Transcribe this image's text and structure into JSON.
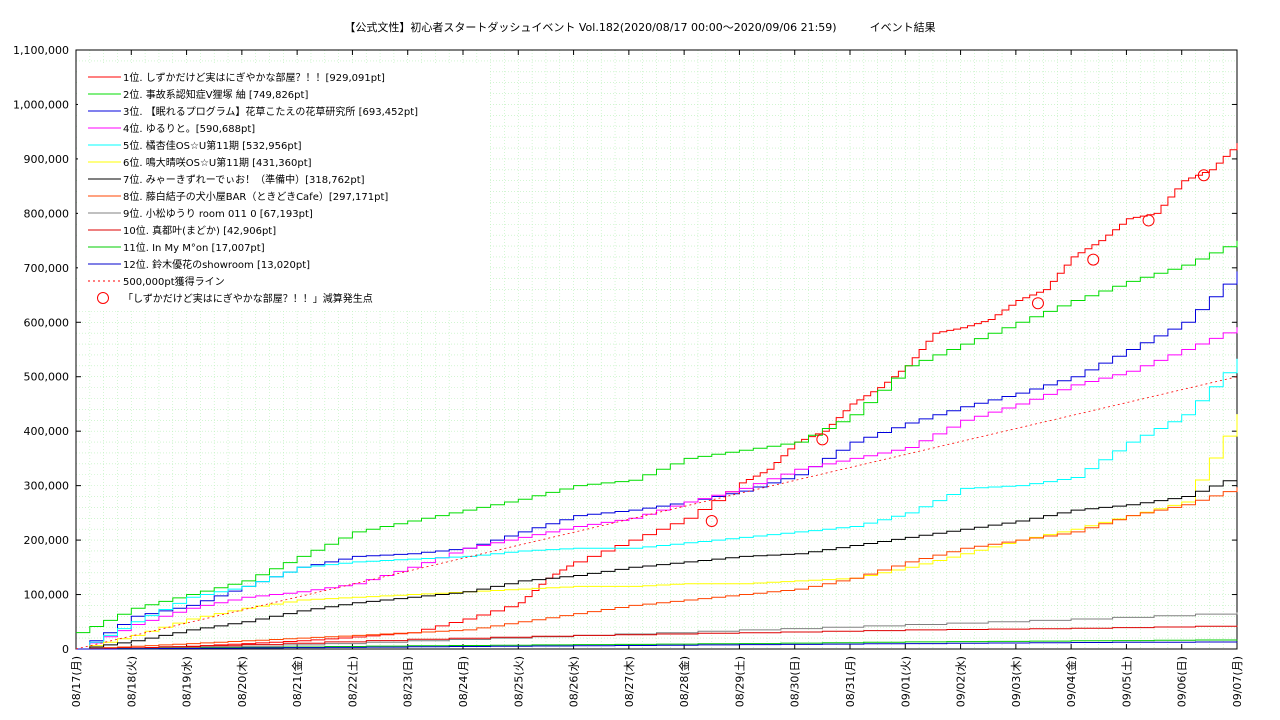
{
  "title": "【公式文性】初心者スタートダッシュイベント Vol.182(2020/08/17 00:00〜2020/09/06 21:59)　　　イベント結果",
  "chart_data": {
    "type": "line",
    "grid": true,
    "legend_position": "top-left",
    "ylim": [
      0,
      1100000
    ],
    "y_ticks": [
      0,
      100000,
      200000,
      300000,
      400000,
      500000,
      600000,
      700000,
      800000,
      900000,
      1000000,
      1100000
    ],
    "y_tick_labels": [
      "0",
      "100,000",
      "200,000",
      "300,000",
      "400,000",
      "500,000",
      "600,000",
      "700,000",
      "800,000",
      "900,000",
      "1,000,000",
      "1,100,000"
    ],
    "xlim": [
      0,
      21
    ],
    "x_tick_labels": [
      "08/17(月)",
      "08/18(火)",
      "08/19(水)",
      "08/20(木)",
      "08/21(金)",
      "08/22(土)",
      "08/23(日)",
      "08/24(月)",
      "08/25(火)",
      "08/26(水)",
      "08/27(木)",
      "08/28(金)",
      "08/29(土)",
      "08/30(日)",
      "08/31(月)",
      "09/01(火)",
      "09/02(水)",
      "09/03(木)",
      "09/04(金)",
      "09/05(土)",
      "09/06(日)",
      "09/07(月)"
    ],
    "series": [
      {
        "name": "1位. しずかだけど実はにぎやかな部屋？！！[929,091pt]",
        "color": "#ff0000",
        "x": [
          0,
          1,
          2,
          3,
          4,
          5,
          6,
          7,
          8,
          8.5,
          9,
          10,
          11,
          12,
          12.5,
          13,
          13.5,
          14,
          14.5,
          15,
          15.5,
          16,
          16.5,
          17,
          17.5,
          18,
          18.5,
          19,
          19.5,
          20,
          20.5,
          21
        ],
        "y": [
          0,
          2000,
          5000,
          10000,
          15000,
          22000,
          30000,
          55000,
          85000,
          130000,
          160000,
          200000,
          240000,
          305000,
          330000,
          380000,
          400000,
          450000,
          480000,
          520000,
          580000,
          590000,
          605000,
          640000,
          660000,
          720000,
          750000,
          790000,
          800000,
          860000,
          880000,
          929091
        ]
      },
      {
        "name": "2位. 事故系認知症V狸塚 紬 [749,826pt]",
        "color": "#00dd00",
        "x": [
          0,
          1,
          2,
          3,
          4,
          5,
          6,
          7,
          8,
          9,
          10,
          11,
          12,
          13,
          14,
          15,
          16,
          17,
          18,
          19,
          20,
          21
        ],
        "y": [
          30000,
          75000,
          100000,
          125000,
          170000,
          215000,
          235000,
          255000,
          275000,
          300000,
          310000,
          350000,
          365000,
          380000,
          430000,
          520000,
          560000,
          600000,
          640000,
          675000,
          705000,
          749826
        ]
      },
      {
        "name": "3位. 【眠れるプログラム】花草こたえの花草研究所 [693,452pt]",
        "color": "#0000dd",
        "x": [
          0,
          1,
          2,
          3,
          4,
          5,
          6,
          7,
          8,
          9,
          10,
          11,
          12,
          13,
          14,
          15,
          16,
          17,
          18,
          19,
          20,
          21
        ],
        "y": [
          0,
          60000,
          80000,
          115000,
          150000,
          170000,
          175000,
          185000,
          215000,
          245000,
          255000,
          270000,
          290000,
          320000,
          380000,
          415000,
          445000,
          470000,
          500000,
          550000,
          600000,
          693452
        ]
      },
      {
        "name": "4位. ゆるりと。[590,688pt]",
        "color": "#ff00ff",
        "x": [
          0,
          1,
          2,
          3,
          4,
          5,
          6,
          7,
          8,
          9,
          10,
          11,
          12,
          13,
          14,
          15,
          16,
          17,
          18,
          19,
          20,
          21
        ],
        "y": [
          0,
          45000,
          75000,
          95000,
          105000,
          120000,
          150000,
          185000,
          205000,
          225000,
          240000,
          270000,
          295000,
          330000,
          350000,
          370000,
          420000,
          450000,
          485000,
          510000,
          550000,
          590688
        ]
      },
      {
        "name": "5位. 橘杏佳OS☆U第11期 [532,956pt]",
        "color": "#00ffff",
        "x": [
          0,
          1,
          2,
          3,
          4,
          5,
          6,
          7,
          8,
          9,
          10,
          11,
          12,
          13,
          14,
          15,
          16,
          17,
          18,
          19,
          20,
          21
        ],
        "y": [
          0,
          50000,
          95000,
          115000,
          150000,
          160000,
          165000,
          170000,
          180000,
          185000,
          185000,
          195000,
          205000,
          215000,
          225000,
          250000,
          295000,
          300000,
          315000,
          380000,
          430000,
          532956
        ]
      },
      {
        "name": "6位. 鳴大晴咲OS☆U第11期 [431,360pt]",
        "color": "#ffff00",
        "x": [
          0,
          1,
          2,
          3,
          4,
          5,
          6,
          7,
          8,
          9,
          10,
          11,
          12,
          13,
          14,
          15,
          16,
          17,
          18,
          19,
          20,
          21
        ],
        "y": [
          0,
          25000,
          55000,
          75000,
          90000,
          95000,
          100000,
          105000,
          110000,
          115000,
          115000,
          120000,
          120000,
          125000,
          130000,
          150000,
          175000,
          200000,
          220000,
          245000,
          270000,
          431360
        ]
      },
      {
        "name": "7位. みゃーきずれーでぃお！（準備中）[318,762pt]",
        "color": "#000000",
        "x": [
          0,
          1,
          2,
          3,
          4,
          5,
          6,
          7,
          8,
          9,
          10,
          11,
          12,
          13,
          14,
          15,
          16,
          17,
          18,
          19,
          20,
          21
        ],
        "y": [
          0,
          15000,
          35000,
          50000,
          70000,
          85000,
          95000,
          105000,
          125000,
          135000,
          150000,
          160000,
          170000,
          175000,
          190000,
          205000,
          220000,
          235000,
          255000,
          265000,
          280000,
          318762
        ]
      },
      {
        "name": "8位. 藤白結子の犬小屋BAR（ときどきCafe）[297,171pt]",
        "color": "#ff4400",
        "x": [
          0,
          1,
          2,
          3,
          4,
          5,
          6,
          7,
          8,
          9,
          10,
          11,
          12,
          13,
          14,
          15,
          16,
          17,
          18,
          19,
          20,
          21
        ],
        "y": [
          0,
          5000,
          10000,
          15000,
          20000,
          25000,
          30000,
          35000,
          50000,
          65000,
          80000,
          90000,
          100000,
          110000,
          130000,
          160000,
          185000,
          200000,
          215000,
          245000,
          265000,
          297171
        ]
      },
      {
        "name": "9位. 小松ゆうり room 011 0 [67,193pt]",
        "color": "#808080",
        "x": [
          0,
          3,
          6,
          9,
          12,
          15,
          18,
          21
        ],
        "y": [
          0,
          5000,
          15000,
          25000,
          35000,
          45000,
          55000,
          67193
        ]
      },
      {
        "name": "10位. 真都叶(まどか) [42,906pt]",
        "color": "#dd0000",
        "x": [
          0,
          3,
          6,
          9,
          12,
          15,
          18,
          21
        ],
        "y": [
          0,
          8000,
          18000,
          25000,
          30000,
          35000,
          38000,
          42906
        ]
      },
      {
        "name": "11位. In My M°on [17,007pt]",
        "color": "#00cc00",
        "x": [
          0,
          3,
          6,
          9,
          12,
          15,
          18,
          21
        ],
        "y": [
          0,
          3000,
          6000,
          8000,
          10000,
          13000,
          15000,
          17007
        ]
      },
      {
        "name": "12位. 鈴木優花のshowroom [13,020pt]",
        "color": "#0000cc",
        "x": [
          0,
          3,
          6,
          9,
          12,
          15,
          18,
          21
        ],
        "y": [
          0,
          2000,
          4000,
          6000,
          8000,
          10000,
          12000,
          13020
        ]
      },
      {
        "name": "500,000pt獲得ライン",
        "color": "#ff0000",
        "dashed": true,
        "x": [
          0,
          21
        ],
        "y": [
          0,
          500000
        ]
      }
    ],
    "markers": {
      "name": "「しずかだけど実はにぎやかな部屋？！！」減算発生点",
      "color": "#ff0000",
      "points": [
        {
          "x": 11.5,
          "y": 235000
        },
        {
          "x": 13.5,
          "y": 385000
        },
        {
          "x": 17.4,
          "y": 635000
        },
        {
          "x": 18.4,
          "y": 715000
        },
        {
          "x": 19.4,
          "y": 787000
        },
        {
          "x": 20.4,
          "y": 870000
        }
      ]
    }
  }
}
